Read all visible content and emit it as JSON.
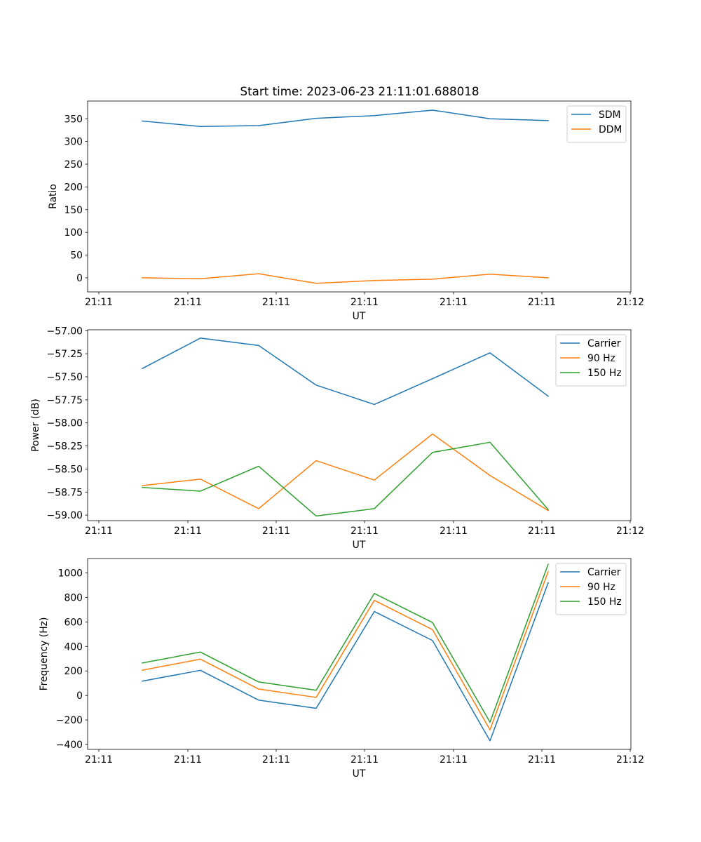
{
  "figure": {
    "title": "Start time: 2023-06-23 21:11:01.688018"
  },
  "chart_data": [
    {
      "type": "line",
      "xlabel": "UT",
      "ylabel": "Ratio",
      "x_tick_labels": [
        "21:11",
        "21:11",
        "21:11",
        "21:11",
        "21:11",
        "21:11",
        "21:12"
      ],
      "y_ticks": [
        0,
        50,
        100,
        150,
        200,
        250,
        300,
        350
      ],
      "y_tick_labels": [
        "0",
        "50",
        "100",
        "150",
        "200",
        "250",
        "300",
        "350"
      ],
      "ylim": [
        -31,
        389
      ],
      "legend_position": "top-right",
      "series": [
        {
          "name": "SDM",
          "color": "#1f77b4",
          "values": [
            345,
            333,
            335,
            351,
            357,
            369,
            350,
            346
          ]
        },
        {
          "name": "DDM",
          "color": "#ff7f0e",
          "values": [
            0,
            -2,
            9,
            -12,
            -6,
            -3,
            8,
            0
          ]
        }
      ]
    },
    {
      "type": "line",
      "xlabel": "UT",
      "ylabel": "Power (dB)",
      "x_tick_labels": [
        "21:11",
        "21:11",
        "21:11",
        "21:11",
        "21:11",
        "21:11",
        "21:12"
      ],
      "y_ticks": [
        -59.0,
        -58.75,
        -58.5,
        -58.25,
        -58.0,
        -57.75,
        -57.5,
        -57.25,
        -57.0
      ],
      "y_tick_labels": [
        "−59.00",
        "−58.75",
        "−58.50",
        "−58.25",
        "−58.00",
        "−57.75",
        "−57.50",
        "−57.25",
        "−57.00"
      ],
      "ylim": [
        -59.06,
        -56.99
      ],
      "legend_position": "top-right",
      "series": [
        {
          "name": "Carrier",
          "color": "#1f77b4",
          "values": [
            -57.41,
            -57.08,
            -57.16,
            -57.59,
            -57.8,
            -57.52,
            -57.24,
            -57.71
          ]
        },
        {
          "name": "90 Hz",
          "color": "#ff7f0e",
          "values": [
            -58.68,
            -58.61,
            -58.93,
            -58.41,
            -58.62,
            -58.12,
            -58.57,
            -58.95
          ]
        },
        {
          "name": "150 Hz",
          "color": "#2ca02c",
          "values": [
            -58.7,
            -58.74,
            -58.47,
            -59.01,
            -58.93,
            -58.32,
            -58.21,
            -58.94
          ]
        }
      ]
    },
    {
      "type": "line",
      "xlabel": "UT",
      "ylabel": "Frequency (Hz)",
      "x_tick_labels": [
        "21:11",
        "21:11",
        "21:11",
        "21:11",
        "21:11",
        "21:11",
        "21:12"
      ],
      "y_ticks": [
        -400,
        -200,
        0,
        200,
        400,
        600,
        800,
        1000
      ],
      "y_tick_labels": [
        "−400",
        "−200",
        "0",
        "200",
        "400",
        "600",
        "800",
        "1000"
      ],
      "ylim": [
        -440,
        1117
      ],
      "legend_position": "top-right",
      "series": [
        {
          "name": "Carrier",
          "color": "#1f77b4",
          "values": [
            117,
            205,
            -38,
            -105,
            685,
            448,
            -370,
            920
          ]
        },
        {
          "name": "90 Hz",
          "color": "#ff7f0e",
          "values": [
            206,
            296,
            52,
            -16,
            776,
            537,
            -280,
            1010
          ]
        },
        {
          "name": "150 Hz",
          "color": "#2ca02c",
          "values": [
            265,
            354,
            110,
            42,
            832,
            595,
            -218,
            1070
          ]
        }
      ]
    }
  ]
}
